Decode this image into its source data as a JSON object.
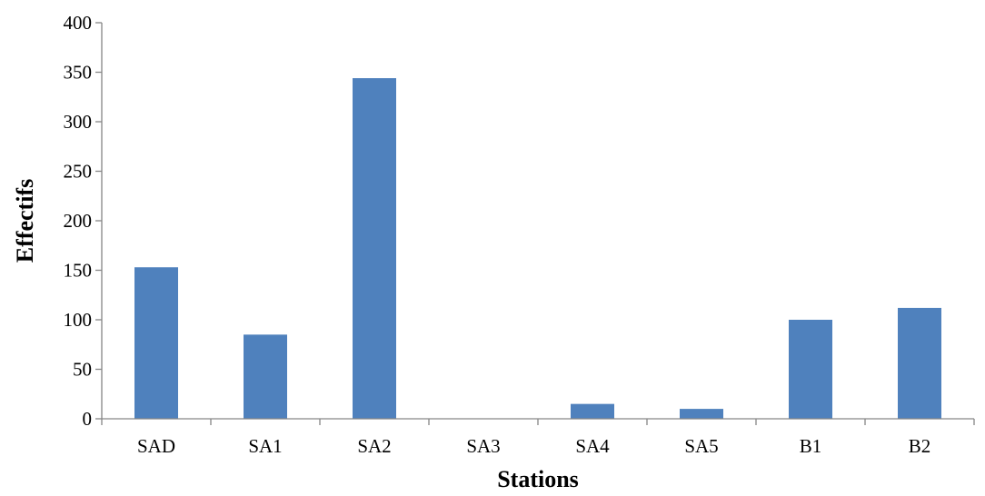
{
  "chart_data": {
    "type": "bar",
    "title": "",
    "xlabel": "Stations",
    "ylabel": "Effectifs",
    "categories": [
      "SAD",
      "SA1",
      "SA2",
      "SA3",
      "SA4",
      "SA5",
      "B1",
      "B2"
    ],
    "values": [
      153,
      85,
      344,
      0,
      15,
      10,
      100,
      112
    ],
    "ylim": [
      0,
      400
    ],
    "yticks": [
      0,
      50,
      100,
      150,
      200,
      250,
      300,
      350,
      400
    ],
    "grid": false,
    "legend": "none",
    "bar_color": "#4F81BD",
    "axis_color": "#868686"
  }
}
